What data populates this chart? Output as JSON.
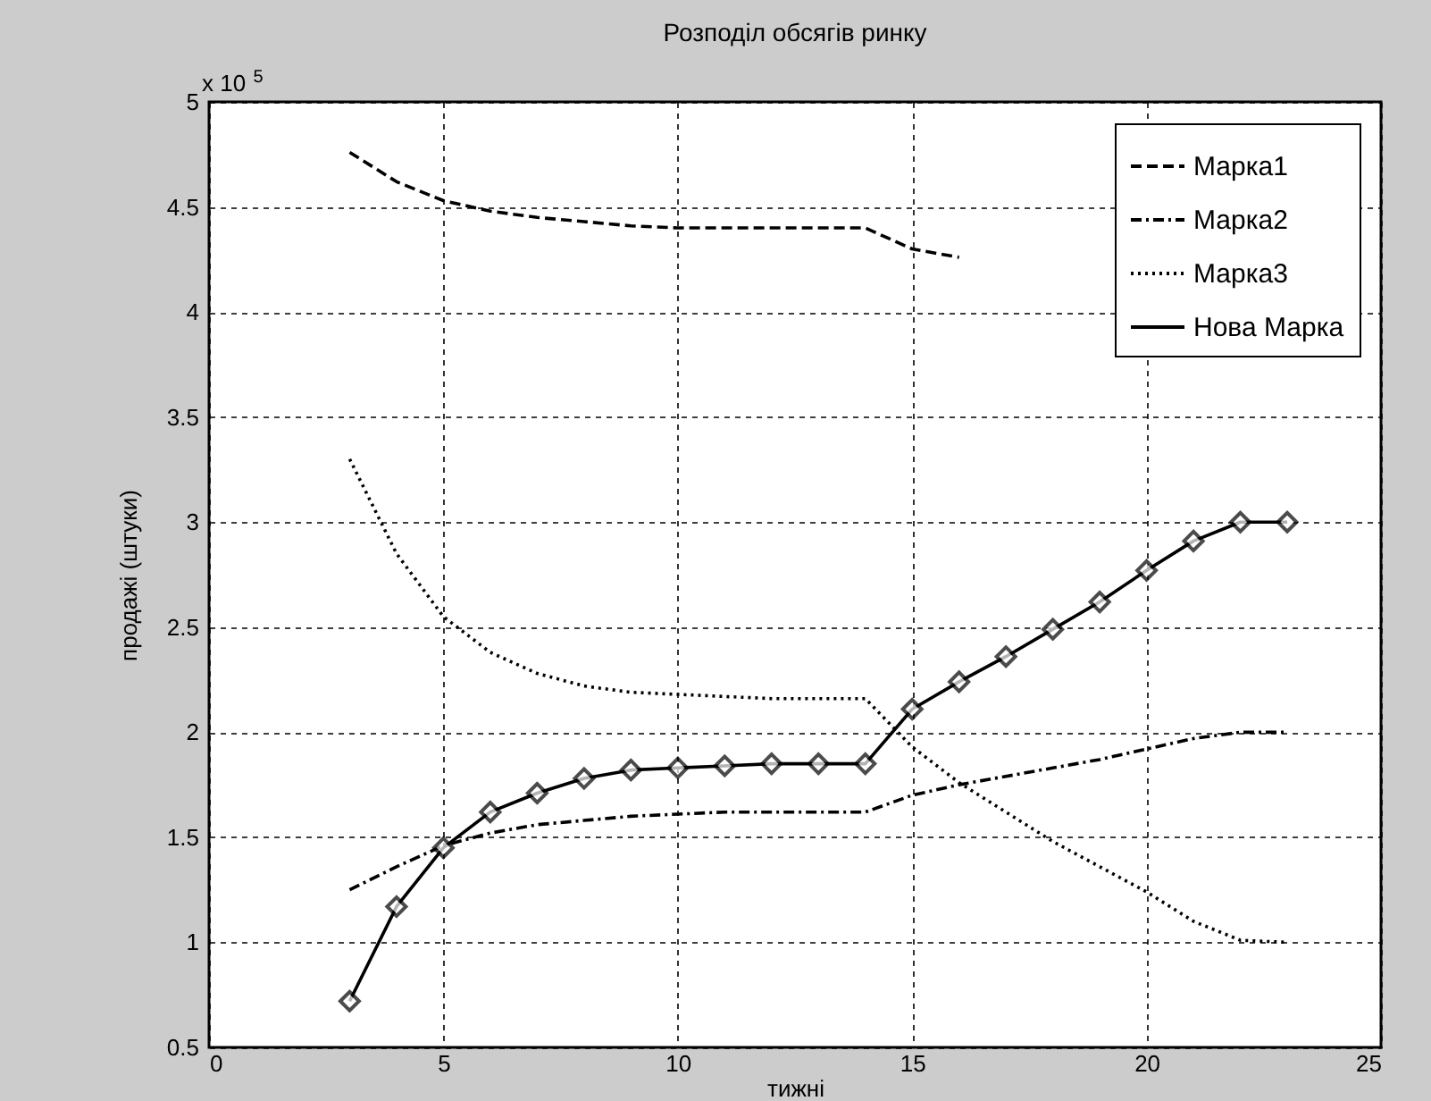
{
  "chart_data": {
    "type": "line",
    "title": "Розподіл обсягів ринку",
    "xlabel": "тижні",
    "ylabel": "продажі (штуки)",
    "annotations": [
      "x 10$^{5}$"
    ],
    "x": [
      3,
      4,
      5,
      6,
      7,
      8,
      9,
      10,
      11,
      12,
      13,
      14,
      15,
      16,
      17,
      18,
      19,
      20,
      21,
      22,
      23
    ],
    "series": [
      {
        "name": "Марка1",
        "color": "#000000",
        "line_style": "dashed",
        "values": [
          4.76,
          4.62,
          4.53,
          4.48,
          4.45,
          4.43,
          4.41,
          4.4,
          4.4,
          4.4,
          4.4,
          4.4,
          4.3,
          4.26,
          null,
          null,
          null,
          null,
          null,
          null,
          null
        ]
      },
      {
        "name": "Марка2",
        "color": "#000000",
        "line_style": "dashdot",
        "values": [
          1.25,
          1.36,
          1.46,
          1.52,
          1.56,
          1.58,
          1.6,
          1.61,
          1.62,
          1.62,
          1.62,
          1.62,
          1.7,
          1.75,
          1.79,
          1.83,
          1.87,
          1.92,
          1.97,
          2.0,
          2.0
        ]
      },
      {
        "name": "Марка3",
        "color": "#000000",
        "line_style": "dotted",
        "values": [
          3.3,
          2.85,
          2.55,
          2.38,
          2.28,
          2.22,
          2.19,
          2.18,
          2.17,
          2.16,
          2.16,
          2.16,
          1.93,
          1.76,
          1.62,
          1.48,
          1.36,
          1.24,
          1.1,
          1.01,
          1.0
        ]
      },
      {
        "name": "Нова Марка",
        "color": "#000000",
        "line_style": "solid",
        "marker": "diamond",
        "values": [
          0.72,
          1.17,
          1.45,
          1.62,
          1.71,
          1.78,
          1.82,
          1.83,
          1.84,
          1.85,
          1.85,
          1.85,
          2.11,
          2.24,
          2.36,
          2.49,
          2.62,
          2.77,
          2.91,
          3.0,
          3.0
        ]
      }
    ],
    "xlim": [
      0,
      25
    ],
    "xticks": [
      0,
      5,
      10,
      15,
      20,
      25
    ],
    "ylim": [
      0.5,
      5
    ],
    "yticks": [
      0.5,
      1,
      1.5,
      2,
      2.5,
      3,
      3.5,
      4,
      4.5,
      5
    ],
    "grid": true,
    "legend": "top right"
  }
}
